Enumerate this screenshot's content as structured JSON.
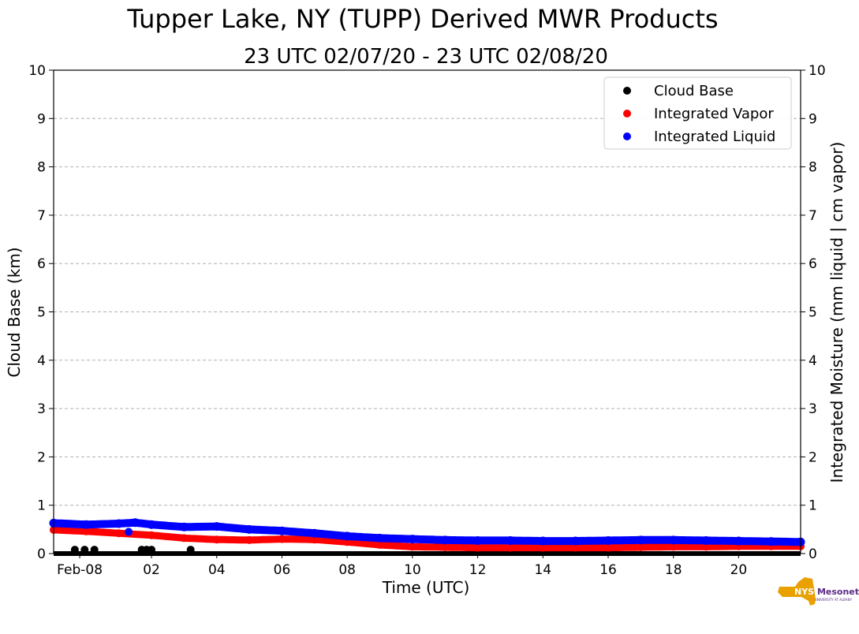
{
  "chart_data": {
    "type": "scatter",
    "title": "Tupper Lake, NY (TUPP) Derived MWR Products",
    "subtitle": "23 UTC 02/07/20 - 23 UTC 02/08/20",
    "xlabel": "Time (UTC)",
    "ylabel_left": "Cloud Base (km)",
    "ylabel_right": "Integrated Moisture (mm liquid | cm vapor)",
    "xlim": [
      -1,
      21.9
    ],
    "ylim": [
      0,
      10
    ],
    "x_ticks": [
      {
        "value": -0.2,
        "label": "Feb-08"
      },
      {
        "value": 2,
        "label": "02"
      },
      {
        "value": 4,
        "label": "04"
      },
      {
        "value": 6,
        "label": "06"
      },
      {
        "value": 8,
        "label": "08"
      },
      {
        "value": 10,
        "label": "10"
      },
      {
        "value": 12,
        "label": "12"
      },
      {
        "value": 14,
        "label": "14"
      },
      {
        "value": 16,
        "label": "16"
      },
      {
        "value": 18,
        "label": "18"
      },
      {
        "value": 20,
        "label": "20"
      }
    ],
    "y_ticks": [
      "0",
      "1",
      "2",
      "3",
      "4",
      "5",
      "6",
      "7",
      "8",
      "9",
      "10"
    ],
    "grid": "horizontal dashed",
    "legend_position": "top-right",
    "series": [
      {
        "name": "Cloud Base",
        "color": "#000000",
        "baseline": {
          "from": -1,
          "to": 21.9,
          "value": 0
        },
        "points": [
          [
            -0.35,
            0.08
          ],
          [
            -0.05,
            0.08
          ],
          [
            0.25,
            0.08
          ],
          [
            1.7,
            0.08
          ],
          [
            1.85,
            0.08
          ],
          [
            2.0,
            0.08
          ],
          [
            3.2,
            0.08
          ]
        ]
      },
      {
        "name": "Integrated Vapor",
        "color": "#ff0000",
        "points": [
          [
            -1,
            0.49
          ],
          [
            0,
            0.46
          ],
          [
            1,
            0.42
          ],
          [
            2,
            0.38
          ],
          [
            3,
            0.32
          ],
          [
            4,
            0.29
          ],
          [
            5,
            0.28
          ],
          [
            6,
            0.3
          ],
          [
            7,
            0.29
          ],
          [
            8,
            0.24
          ],
          [
            9,
            0.18
          ],
          [
            10,
            0.14
          ],
          [
            11,
            0.13
          ],
          [
            12,
            0.12
          ],
          [
            13,
            0.12
          ],
          [
            14,
            0.12
          ],
          [
            15,
            0.12
          ],
          [
            16,
            0.12
          ],
          [
            17,
            0.13
          ],
          [
            18,
            0.14
          ],
          [
            19,
            0.14
          ],
          [
            20,
            0.15
          ],
          [
            21,
            0.15
          ],
          [
            21.9,
            0.15
          ]
        ]
      },
      {
        "name": "Integrated Liquid",
        "color": "#0000ff",
        "points": [
          [
            -1,
            0.63
          ],
          [
            0,
            0.6
          ],
          [
            1,
            0.62
          ],
          [
            1.5,
            0.64
          ],
          [
            2,
            0.6
          ],
          [
            3,
            0.55
          ],
          [
            4,
            0.56
          ],
          [
            5,
            0.5
          ],
          [
            6,
            0.47
          ],
          [
            7,
            0.42
          ],
          [
            8,
            0.36
          ],
          [
            9,
            0.32
          ],
          [
            10,
            0.3
          ],
          [
            11,
            0.28
          ],
          [
            12,
            0.27
          ],
          [
            13,
            0.27
          ],
          [
            14,
            0.26
          ],
          [
            15,
            0.26
          ],
          [
            16,
            0.27
          ],
          [
            17,
            0.28
          ],
          [
            18,
            0.28
          ],
          [
            19,
            0.27
          ],
          [
            20,
            0.26
          ],
          [
            21,
            0.25
          ],
          [
            21.9,
            0.24
          ]
        ],
        "outliers": [
          [
            1.3,
            0.45
          ]
        ]
      }
    ]
  },
  "logo": {
    "text": "NYS Mesonet",
    "sub": "UNIVERSITY AT ALBANY",
    "color": "#e9a100",
    "text_color": "#5b2a86"
  }
}
